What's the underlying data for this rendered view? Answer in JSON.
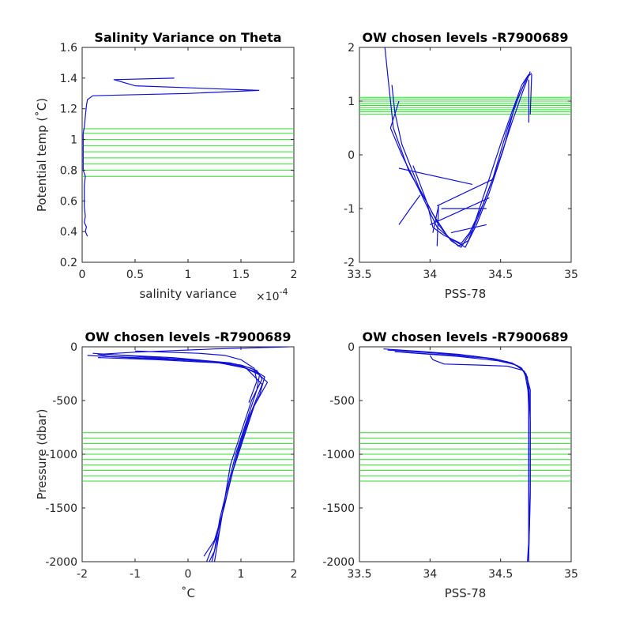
{
  "chart_data": [
    {
      "id": "p1",
      "type": "line",
      "title": "Salinity Variance on Theta",
      "xlabel": "salinity variance",
      "xexp": "×10",
      "xexp_power": "-4",
      "ylabel": "Potential temp (˚C)",
      "xlim": [
        0,
        2
      ],
      "ylim": [
        0.2,
        1.6
      ],
      "xticks": [
        0,
        0.5,
        1,
        1.5,
        2
      ],
      "xticklabels": [
        "0",
        "0.5",
        "1",
        "1.5",
        "2"
      ],
      "yticks": [
        0.2,
        0.4,
        0.6,
        0.8,
        1,
        1.2,
        1.4,
        1.6
      ],
      "yticklabels": [
        "0.2",
        "0.4",
        "0.6",
        "0.8",
        "1",
        "1.2",
        "1.4",
        "1.6"
      ],
      "hlines": [
        0.76,
        0.8,
        0.84,
        0.88,
        0.92,
        0.96,
        1.0,
        1.04,
        1.07
      ],
      "series": [
        {
          "points": [
            [
              0.05,
              0.37
            ],
            [
              0.03,
              0.4
            ],
            [
              0.04,
              0.43
            ],
            [
              0.02,
              0.46
            ],
            [
              0.03,
              0.5
            ],
            [
              0.02,
              0.56
            ],
            [
              0.02,
              0.62
            ],
            [
              0.02,
              0.7
            ],
            [
              0.03,
              0.76
            ],
            [
              0.01,
              0.8
            ],
            [
              0.01,
              0.86
            ],
            [
              0.01,
              0.92
            ],
            [
              0.01,
              0.98
            ],
            [
              0.01,
              1.04
            ],
            [
              0.02,
              1.08
            ],
            [
              0.03,
              1.15
            ],
            [
              0.04,
              1.22
            ],
            [
              0.05,
              1.26
            ],
            [
              0.1,
              1.285
            ],
            [
              0.4,
              1.29
            ],
            [
              1.0,
              1.3
            ],
            [
              1.67,
              1.32
            ],
            [
              0.5,
              1.35
            ],
            [
              0.3,
              1.39
            ],
            [
              0.87,
              1.4
            ]
          ]
        }
      ]
    },
    {
      "id": "p2",
      "type": "line",
      "title": "OW chosen levels -R7900689",
      "xlabel": "PSS-78",
      "ylabel": "",
      "xlim": [
        33.5,
        35
      ],
      "ylim": [
        -2,
        2
      ],
      "xticks": [
        33.5,
        34,
        34.5,
        35
      ],
      "xticklabels": [
        "33.5",
        "34",
        "34.5",
        "35"
      ],
      "yticks": [
        -2,
        -1,
        0,
        1,
        2
      ],
      "yticklabels": [
        "-2",
        "-1",
        "0",
        "1",
        "2"
      ],
      "hlines": [
        0.76,
        0.8,
        0.84,
        0.88,
        0.92,
        0.96,
        1.0,
        1.04,
        1.07
      ],
      "series": [
        {
          "points": [
            [
              33.68,
              2.0
            ],
            [
              33.7,
              1.5
            ],
            [
              33.72,
              1.0
            ],
            [
              33.74,
              0.5
            ],
            [
              33.85,
              -0.3
            ],
            [
              33.98,
              -0.9
            ],
            [
              34.06,
              -1.3
            ],
            [
              34.15,
              -1.6
            ],
            [
              34.22,
              -1.72
            ],
            [
              34.3,
              -1.4
            ],
            [
              34.4,
              -0.6
            ],
            [
              34.5,
              0.2
            ],
            [
              34.58,
              0.8
            ],
            [
              34.65,
              1.3
            ],
            [
              34.7,
              1.5
            ]
          ]
        },
        {
          "points": [
            [
              33.73,
              1.3
            ],
            [
              33.75,
              0.8
            ],
            [
              33.8,
              0.2
            ],
            [
              33.92,
              -0.6
            ],
            [
              34.02,
              -1.1
            ],
            [
              34.12,
              -1.5
            ],
            [
              34.2,
              -1.7
            ],
            [
              34.27,
              -1.6
            ],
            [
              34.35,
              -1.1
            ],
            [
              34.45,
              -0.4
            ],
            [
              34.55,
              0.5
            ],
            [
              34.63,
              1.1
            ],
            [
              34.69,
              1.45
            ],
            [
              34.72,
              1.52
            ]
          ]
        },
        {
          "points": [
            [
              33.78,
              1.0
            ],
            [
              33.72,
              0.5
            ],
            [
              33.8,
              0.0
            ],
            [
              33.95,
              -0.8
            ],
            [
              34.05,
              -1.35
            ],
            [
              34.14,
              -1.55
            ],
            [
              34.25,
              -1.72
            ],
            [
              34.33,
              -1.3
            ],
            [
              34.42,
              -0.7
            ],
            [
              34.52,
              0.1
            ],
            [
              34.6,
              0.9
            ],
            [
              34.68,
              1.4
            ]
          ]
        },
        {
          "points": [
            [
              33.88,
              -0.2
            ],
            [
              33.98,
              -0.9
            ],
            [
              34.02,
              -1.35
            ],
            [
              34.1,
              -1.5
            ],
            [
              34.22,
              -1.65
            ],
            [
              34.28,
              -1.45
            ],
            [
              34.38,
              -0.9
            ],
            [
              34.48,
              -0.2
            ],
            [
              34.58,
              0.6
            ],
            [
              34.66,
              1.2
            ],
            [
              34.71,
              1.55
            ]
          ]
        },
        {
          "points": [
            [
              33.93,
              -0.75
            ],
            [
              33.86,
              -1.0
            ],
            [
              33.78,
              -1.3
            ]
          ]
        },
        {
          "points": [
            [
              34.05,
              -0.95
            ],
            [
              34.45,
              -0.45
            ]
          ]
        },
        {
          "points": [
            [
              34.0,
              -1.3
            ],
            [
              34.42,
              -0.8
            ]
          ]
        },
        {
          "points": [
            [
              34.15,
              -1.45
            ],
            [
              34.4,
              -1.3
            ]
          ]
        },
        {
          "points": [
            [
              33.78,
              -0.25
            ],
            [
              34.3,
              -0.55
            ]
          ]
        },
        {
          "points": [
            [
              34.08,
              -1.0
            ],
            [
              34.4,
              -1.0
            ]
          ]
        },
        {
          "points": [
            [
              34.02,
              -1.45
            ],
            [
              34.06,
              -0.95
            ],
            [
              34.05,
              -1.7
            ]
          ]
        },
        {
          "points": [
            [
              34.7,
              1.4
            ],
            [
              34.7,
              0.6
            ]
          ]
        },
        {
          "points": [
            [
              34.72,
              1.5
            ],
            [
              34.71,
              0.75
            ]
          ]
        }
      ]
    },
    {
      "id": "p3",
      "type": "line",
      "title": "OW chosen levels -R7900689",
      "xlabel": "˚C",
      "ylabel": "Pressure (dbar)",
      "xlim": [
        -2,
        2
      ],
      "ylim": [
        -2000,
        0
      ],
      "xticks": [
        -2,
        -1,
        0,
        1,
        2
      ],
      "xticklabels": [
        "-2",
        "-1",
        "0",
        "1",
        "2"
      ],
      "yticks": [
        -2000,
        -1500,
        -1000,
        -500,
        0
      ],
      "yticklabels": [
        "-2000",
        "-1500",
        "-1000",
        "-500",
        "0"
      ],
      "hlines": [
        -800,
        -850,
        -900,
        -950,
        -1000,
        -1050,
        -1100,
        -1150,
        -1200,
        -1250
      ],
      "series": [
        {
          "points": [
            [
              1.9,
              0
            ],
            [
              0.5,
              -20
            ],
            [
              -1.0,
              -50
            ],
            [
              -1.7,
              -70
            ],
            [
              -1.5,
              -90
            ],
            [
              -0.5,
              -110
            ],
            [
              0.5,
              -140
            ],
            [
              1.0,
              -170
            ],
            [
              1.3,
              -220
            ],
            [
              1.4,
              -300
            ],
            [
              1.2,
              -500
            ],
            [
              1.0,
              -800
            ],
            [
              0.8,
              -1100
            ],
            [
              0.7,
              -1400
            ],
            [
              0.6,
              -1700
            ],
            [
              0.45,
              -2000
            ]
          ]
        },
        {
          "points": [
            [
              -1.8,
              -60
            ],
            [
              -0.8,
              -95
            ],
            [
              0.3,
              -130
            ],
            [
              1.0,
              -180
            ],
            [
              1.35,
              -260
            ],
            [
              1.3,
              -400
            ],
            [
              1.1,
              -700
            ],
            [
              0.9,
              -1000
            ],
            [
              0.75,
              -1300
            ],
            [
              0.6,
              -1600
            ],
            [
              0.5,
              -1900
            ],
            [
              0.4,
              -2000
            ]
          ]
        },
        {
          "points": [
            [
              -1.6,
              -70
            ],
            [
              -0.3,
              -100
            ],
            [
              0.8,
              -150
            ],
            [
              1.2,
              -200
            ],
            [
              1.45,
              -280
            ],
            [
              1.35,
              -450
            ],
            [
              1.15,
              -650
            ],
            [
              0.95,
              -950
            ],
            [
              0.8,
              -1250
            ],
            [
              0.65,
              -1550
            ],
            [
              0.55,
              -1850
            ],
            [
              0.5,
              -2000
            ]
          ]
        },
        {
          "points": [
            [
              -1.9,
              -80
            ],
            [
              -1.0,
              -105
            ],
            [
              0.0,
              -125
            ],
            [
              0.9,
              -160
            ],
            [
              1.3,
              -240
            ],
            [
              1.5,
              -330
            ],
            [
              1.25,
              -550
            ],
            [
              1.05,
              -850
            ],
            [
              0.85,
              -1150
            ],
            [
              0.7,
              -1450
            ],
            [
              0.55,
              -1750
            ],
            [
              0.35,
              -2000
            ]
          ]
        },
        {
          "points": [
            [
              -1.7,
              -100
            ],
            [
              -0.6,
              -120
            ],
            [
              0.6,
              -150
            ],
            [
              1.1,
              -200
            ],
            [
              1.4,
              -350
            ],
            [
              1.2,
              -600
            ],
            [
              1.0,
              -900
            ],
            [
              0.82,
              -1200
            ],
            [
              0.68,
              -1500
            ],
            [
              0.5,
              -1800
            ],
            [
              0.3,
              -1950
            ]
          ]
        },
        {
          "points": [
            [
              -1.0,
              -40
            ],
            [
              0.2,
              -60
            ],
            [
              0.7,
              -80
            ],
            [
              1.0,
              -120
            ],
            [
              1.25,
              -200
            ],
            [
              1.3,
              -320
            ],
            [
              1.15,
              -520
            ]
          ]
        }
      ]
    },
    {
      "id": "p4",
      "type": "line",
      "title": "OW chosen levels -R7900689",
      "xlabel": "PSS-78",
      "ylabel": "",
      "xlim": [
        33.5,
        35
      ],
      "ylim": [
        -2000,
        0
      ],
      "xticks": [
        33.5,
        34,
        34.5,
        35
      ],
      "xticklabels": [
        "33.5",
        "34",
        "34.5",
        "35"
      ],
      "yticks": [
        -2000,
        -1500,
        -1000,
        -500,
        0
      ],
      "yticklabels": [
        "-2000",
        "-1500",
        "-1000",
        "-500",
        "0"
      ],
      "hlines": [
        -800,
        -850,
        -900,
        -950,
        -1000,
        -1050,
        -1100,
        -1150,
        -1200,
        -1250
      ],
      "series": [
        {
          "points": [
            [
              33.67,
              -20
            ],
            [
              33.9,
              -40
            ],
            [
              34.2,
              -70
            ],
            [
              34.45,
              -110
            ],
            [
              34.58,
              -150
            ],
            [
              34.65,
              -200
            ],
            [
              34.69,
              -300
            ],
            [
              34.7,
              -500
            ],
            [
              34.7,
              -1000
            ],
            [
              34.7,
              -1500
            ],
            [
              34.7,
              -2000
            ]
          ]
        },
        {
          "points": [
            [
              33.7,
              -30
            ],
            [
              34.0,
              -55
            ],
            [
              34.3,
              -85
            ],
            [
              34.5,
              -125
            ],
            [
              34.62,
              -175
            ],
            [
              34.68,
              -250
            ],
            [
              34.71,
              -400
            ],
            [
              34.71,
              -800
            ],
            [
              34.71,
              -1400
            ],
            [
              34.7,
              -1900
            ]
          ]
        },
        {
          "points": [
            [
              33.8,
              -50
            ],
            [
              34.1,
              -75
            ],
            [
              34.4,
              -105
            ],
            [
              34.55,
              -140
            ],
            [
              34.64,
              -190
            ],
            [
              34.69,
              -280
            ],
            [
              34.7,
              -600
            ],
            [
              34.7,
              -1200
            ],
            [
              34.7,
              -1800
            ],
            [
              34.69,
              -2000
            ]
          ]
        },
        {
          "points": [
            [
              34.0,
              -80
            ],
            [
              34.02,
              -120
            ],
            [
              34.1,
              -160
            ],
            [
              34.35,
              -170
            ],
            [
              34.55,
              -180
            ],
            [
              34.66,
              -220
            ],
            [
              34.7,
              -350
            ],
            [
              34.71,
              -700
            ],
            [
              34.71,
              -1300
            ],
            [
              34.7,
              -1900
            ]
          ]
        },
        {
          "points": [
            [
              33.75,
              -45
            ],
            [
              34.2,
              -90
            ],
            [
              34.48,
              -130
            ],
            [
              34.6,
              -165
            ],
            [
              34.67,
              -230
            ],
            [
              34.7,
              -450
            ],
            [
              34.7,
              -900
            ],
            [
              34.7,
              -1600
            ],
            [
              34.7,
              -2000
            ]
          ]
        }
      ]
    }
  ]
}
